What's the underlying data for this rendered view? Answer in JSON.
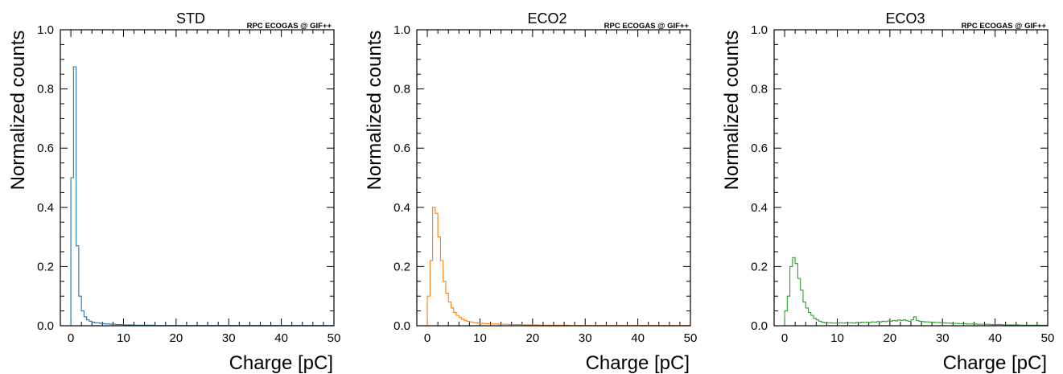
{
  "colors": {
    "background": "#ffffff",
    "axes": "#000000",
    "std": "#1f77b4",
    "eco2": "#ff7f0e",
    "eco3": "#2ca02c"
  },
  "chart_data": [
    {
      "type": "line",
      "drawstyle": "steps",
      "title": "STD",
      "watermark": "RPC ECOGAS @ GIF++",
      "xlabel": "Charge [pC]",
      "ylabel": "Normalized counts",
      "xlim": [
        -2,
        50
      ],
      "ylim": [
        0,
        1.0
      ],
      "xticks": [
        "0",
        "10",
        "20",
        "30",
        "40",
        "50"
      ],
      "yticks": [
        "0.0",
        "0.2",
        "0.4",
        "0.6",
        "0.8",
        "1.0"
      ],
      "grid": false,
      "series": [
        {
          "color": "#1f77b4",
          "bin_edges_start": 0,
          "bin_width": 0.5,
          "values": [
            0.5,
            0.875,
            0.27,
            0.1,
            0.05,
            0.03,
            0.02,
            0.015,
            0.012,
            0.01,
            0.01,
            0.008,
            0.007,
            0.006,
            0.006,
            0.005,
            0.005,
            0.004,
            0.004,
            0.004,
            0.003,
            0.003,
            0.003,
            0.003,
            0.002,
            0.002,
            0.002,
            0.002,
            0.002,
            0.002,
            0.002,
            0.002,
            0.001,
            0.001,
            0.001,
            0.001,
            0.001,
            0.001,
            0.001,
            0.001,
            0.001,
            0.001,
            0.001,
            0.001,
            0.001,
            0.001,
            0.001,
            0.001,
            0.001,
            0.001,
            0.001,
            0.001,
            0.001,
            0.001,
            0.001,
            0.001,
            0.001,
            0.001,
            0.001,
            0.001,
            0.001,
            0.001,
            0.001,
            0.001,
            0.001,
            0.001,
            0.001,
            0.001,
            0.001,
            0.001,
            0.001,
            0.001,
            0.001,
            0.001,
            0.001,
            0.001,
            0.001,
            0.001,
            0.001,
            0.001,
            0.001,
            0.001,
            0.001,
            0.001,
            0.001,
            0.001,
            0.001,
            0.001,
            0.001,
            0.001,
            0.001,
            0.001,
            0.001,
            0.001,
            0.001,
            0.001,
            0.001,
            0.001,
            0.001,
            0.001
          ]
        }
      ]
    },
    {
      "type": "line",
      "drawstyle": "steps",
      "title": "ECO2",
      "watermark": "RPC ECOGAS @ GIF++",
      "xlabel": "Charge [pC]",
      "ylabel": "Normalized counts",
      "xlim": [
        -2,
        50
      ],
      "ylim": [
        0,
        1.0
      ],
      "xticks": [
        "0",
        "10",
        "20",
        "30",
        "40",
        "50"
      ],
      "yticks": [
        "0.0",
        "0.2",
        "0.4",
        "0.6",
        "0.8",
        "1.0"
      ],
      "grid": false,
      "series": [
        {
          "color": "#ff7f0e",
          "bin_edges_start": 0,
          "bin_width": 0.5,
          "values": [
            0.1,
            0.22,
            0.4,
            0.38,
            0.3,
            0.22,
            0.15,
            0.11,
            0.08,
            0.06,
            0.045,
            0.035,
            0.028,
            0.022,
            0.018,
            0.015,
            0.013,
            0.011,
            0.01,
            0.009,
            0.008,
            0.008,
            0.007,
            0.007,
            0.006,
            0.006,
            0.006,
            0.005,
            0.005,
            0.005,
            0.005,
            0.004,
            0.004,
            0.004,
            0.004,
            0.004,
            0.003,
            0.003,
            0.003,
            0.003,
            0.003,
            0.003,
            0.002,
            0.002,
            0.002,
            0.002,
            0.002,
            0.002,
            0.002,
            0.002,
            0.002,
            0.002,
            0.002,
            0.002,
            0.001,
            0.001,
            0.001,
            0.001,
            0.001,
            0.001,
            0.001,
            0.001,
            0.001,
            0.001,
            0.001,
            0.001,
            0.001,
            0.001,
            0.001,
            0.001,
            0.001,
            0.001,
            0.001,
            0.001,
            0.001,
            0.001,
            0.001,
            0.001,
            0.001,
            0.001,
            0.001,
            0.001,
            0.001,
            0.001,
            0.001,
            0.001,
            0.001,
            0.001,
            0.001,
            0.001,
            0.001,
            0.001,
            0.001,
            0.001,
            0.001,
            0.001,
            0.001,
            0.001,
            0.001,
            0.001
          ]
        }
      ]
    },
    {
      "type": "line",
      "drawstyle": "steps",
      "title": "ECO3",
      "watermark": "RPC ECOGAS @ GIF++",
      "xlabel": "Charge [pC]",
      "ylabel": "Normalized counts",
      "xlim": [
        -2,
        50
      ],
      "ylim": [
        0,
        1.0
      ],
      "xticks": [
        "0",
        "10",
        "20",
        "30",
        "40",
        "50"
      ],
      "yticks": [
        "0.0",
        "0.2",
        "0.4",
        "0.6",
        "0.8",
        "1.0"
      ],
      "grid": false,
      "series": [
        {
          "color": "#2ca02c",
          "bin_edges_start": 0,
          "bin_width": 0.5,
          "values": [
            0.05,
            0.1,
            0.2,
            0.23,
            0.21,
            0.16,
            0.12,
            0.08,
            0.06,
            0.045,
            0.035,
            0.025,
            0.02,
            0.015,
            0.012,
            0.01,
            0.01,
            0.01,
            0.009,
            0.009,
            0.009,
            0.01,
            0.009,
            0.01,
            0.01,
            0.01,
            0.009,
            0.011,
            0.01,
            0.012,
            0.011,
            0.012,
            0.011,
            0.013,
            0.012,
            0.014,
            0.013,
            0.015,
            0.014,
            0.016,
            0.015,
            0.018,
            0.016,
            0.02,
            0.018,
            0.02,
            0.017,
            0.015,
            0.02,
            0.03,
            0.018,
            0.015,
            0.014,
            0.013,
            0.013,
            0.012,
            0.012,
            0.011,
            0.011,
            0.01,
            0.01,
            0.009,
            0.009,
            0.008,
            0.008,
            0.008,
            0.007,
            0.007,
            0.007,
            0.006,
            0.006,
            0.006,
            0.006,
            0.005,
            0.005,
            0.005,
            0.005,
            0.005,
            0.004,
            0.004,
            0.004,
            0.004,
            0.004,
            0.003,
            0.003,
            0.003,
            0.003,
            0.003,
            0.003,
            0.002,
            0.002,
            0.002,
            0.002,
            0.002,
            0.002,
            0.002,
            0.002,
            0.002,
            0.002,
            0.002
          ]
        }
      ]
    }
  ]
}
